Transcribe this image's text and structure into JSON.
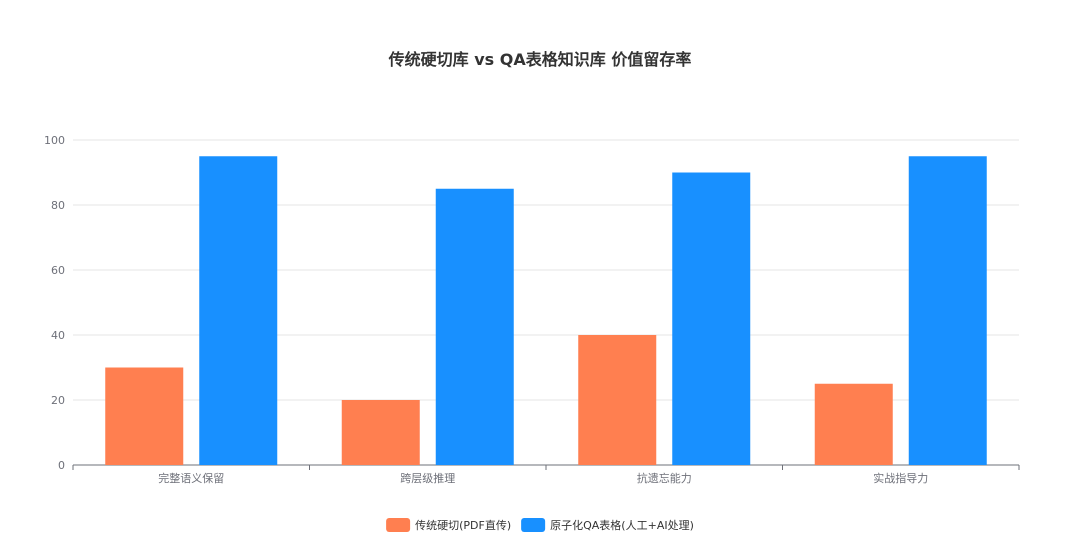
{
  "chart_data": {
    "type": "bar",
    "title": "传统硬切库 vs QA表格知识库 价值留存率",
    "categories": [
      "完整语义保留",
      "跨层级推理",
      "抗遗忘能力",
      "实战指导力"
    ],
    "series": [
      {
        "name": "传统硬切(PDF直传)",
        "color": "#ff7f50",
        "values": [
          30,
          20,
          40,
          25
        ]
      },
      {
        "name": "原子化QA表格(人工+AI处理)",
        "color": "#1890ff",
        "values": [
          95,
          85,
          90,
          95
        ]
      }
    ],
    "y_ticks": [
      0,
      20,
      40,
      60,
      80,
      100
    ],
    "ylim": [
      0,
      100
    ],
    "xlabel": "",
    "ylabel": "",
    "grid": true,
    "legend_position": "bottom-center"
  }
}
